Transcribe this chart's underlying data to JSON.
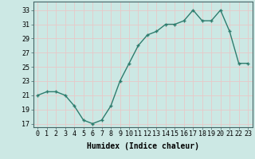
{
  "x": [
    0,
    1,
    2,
    3,
    4,
    5,
    6,
    7,
    8,
    9,
    10,
    11,
    12,
    13,
    14,
    15,
    16,
    17,
    18,
    19,
    20,
    21,
    22,
    23
  ],
  "y": [
    21,
    21.5,
    21.5,
    21,
    19.5,
    17.5,
    17,
    17.5,
    19.5,
    23,
    25.5,
    28,
    29.5,
    30,
    31,
    31,
    31.5,
    33,
    31.5,
    31.5,
    33,
    30,
    25.5,
    25.5
  ],
  "line_color": "#2e7d6e",
  "marker": "+",
  "marker_size": 3.5,
  "bg_color": "#cce8e4",
  "grid_color": "#e8c8c8",
  "xlabel": "Humidex (Indice chaleur)",
  "xlabel_fontsize": 7,
  "ylabel_ticks": [
    17,
    19,
    21,
    23,
    25,
    27,
    29,
    31,
    33
  ],
  "xlim": [
    -0.5,
    23.5
  ],
  "ylim": [
    16.5,
    34.2
  ],
  "xtick_labels": [
    "0",
    "1",
    "2",
    "3",
    "4",
    "5",
    "6",
    "7",
    "8",
    "9",
    "10",
    "11",
    "12",
    "13",
    "14",
    "15",
    "16",
    "17",
    "18",
    "19",
    "20",
    "21",
    "22",
    "23"
  ],
  "tick_fontsize": 6,
  "line_width": 1.0,
  "marker_color": "#2e7d6e"
}
